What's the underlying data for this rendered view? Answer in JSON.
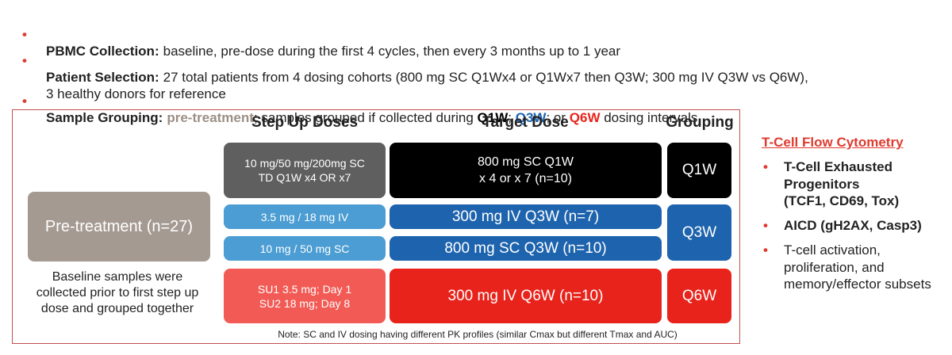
{
  "bullets": [
    {
      "label": "PBMC Collection:",
      "lines": [
        "baseline, pre-dose during the first 4 cycles, then every 3 months up to 1 year"
      ]
    },
    {
      "label": "Patient Selection:",
      "lines": [
        "27 total patients from 4 dosing cohorts (800 mg SC Q1Wx4 or Q1Wx7 then Q3W; 300 mg IV Q3W vs Q6W),",
        "3 healthy donors for reference"
      ]
    },
    {
      "label": "Sample Grouping:",
      "segments": [
        "pre-treatment",
        "; samples grouped if collected during ",
        "Q1W",
        "; ",
        "Q3W",
        "; or ",
        "Q6W",
        " dosing intervals"
      ]
    }
  ],
  "diagram": {
    "headers": [
      "Step Up Doses",
      "Target Dose",
      "Grouping"
    ],
    "pretreatment": {
      "label": "Pre-treatment (n=27)",
      "caption": [
        "Baseline samples were",
        "collected prior to first step up",
        "dose and grouped together"
      ]
    },
    "step_up": [
      [
        "10 mg/50 mg/200mg SC",
        "TD Q1W x4 OR x7"
      ],
      [
        "3.5 mg / 18 mg IV"
      ],
      [
        "10 mg / 50 mg SC"
      ],
      [
        "SU1 3.5 mg; Day 1",
        "SU2 18 mg; Day 8"
      ]
    ],
    "target": [
      [
        "800 mg SC Q1W",
        "x 4 or x 7 (n=10)"
      ],
      [
        "300 mg IV Q3W (n=7)"
      ],
      [
        "800 mg SC Q3W (n=10)"
      ],
      [
        "300 mg IV Q6W (n=10)"
      ]
    ],
    "grouping": [
      "Q1W",
      "Q3W",
      "Q6W"
    ],
    "note": "Note: SC and IV dosing having different PK profiles (similar Cmax but different Tmax and AUC)"
  },
  "side_panel": {
    "title": "T-Cell Flow Cytometry",
    "items": [
      [
        "T-Cell Exhausted",
        "Progenitors",
        "(TCF1, CD69, Tox)"
      ],
      [
        "AICD (gH2AX, Casp3)"
      ],
      [
        "T-cell activation,",
        "proliferation, and",
        "memory/effector subsets"
      ]
    ]
  }
}
